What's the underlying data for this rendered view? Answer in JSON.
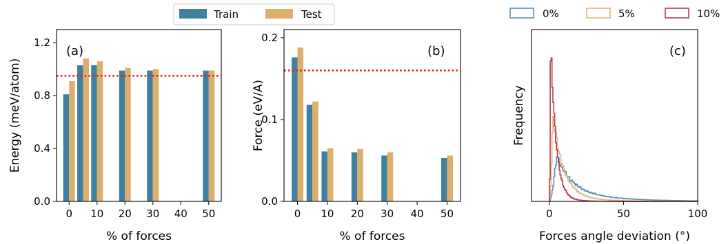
{
  "chart_data": [
    {
      "type": "bar",
      "panel_label": "(a)",
      "xlabel": "% of forces",
      "ylabel": "Energy (meV/atom)",
      "xticks": [
        "0",
        "10",
        "20",
        "30",
        "40",
        "50"
      ],
      "yticks": [
        "0.0",
        "0.4",
        "0.8",
        "1.2"
      ],
      "xlim": [
        -4.5,
        54.5
      ],
      "ylim": [
        0,
        1.3
      ],
      "reference_line": {
        "y": 0.95,
        "style": "dotted",
        "color": "#e8221b"
      },
      "x": [
        0,
        5,
        10,
        20,
        30,
        50
      ],
      "series": [
        {
          "name": "Train",
          "color": "#42809f",
          "values": [
            0.81,
            1.03,
            1.03,
            0.99,
            0.99,
            0.99
          ]
        },
        {
          "name": "Test",
          "color": "#dcb06c",
          "values": [
            0.91,
            1.08,
            1.06,
            1.01,
            1.0,
            0.99
          ]
        }
      ]
    },
    {
      "type": "bar",
      "panel_label": "(b)",
      "xlabel": "% of forces",
      "ylabel": "Force (eV/A)",
      "xticks": [
        "0",
        "10",
        "20",
        "30",
        "40",
        "50"
      ],
      "yticks": [
        "0.0",
        "0.1",
        "0.2"
      ],
      "xlim": [
        -4.5,
        54.5
      ],
      "ylim": [
        0,
        0.21
      ],
      "reference_line": {
        "y": 0.16,
        "style": "dotted",
        "color": "#e8221b"
      },
      "x": [
        0,
        5,
        10,
        20,
        30,
        50
      ],
      "series": [
        {
          "name": "Train",
          "color": "#42809f",
          "values": [
            0.176,
            0.118,
            0.061,
            0.06,
            0.056,
            0.053
          ]
        },
        {
          "name": "Test",
          "color": "#dcb06c",
          "values": [
            0.188,
            0.122,
            0.065,
            0.064,
            0.06,
            0.056
          ]
        }
      ]
    },
    {
      "type": "histogram",
      "panel_label": "(c)",
      "xlabel": "Forces angle deviation (°)",
      "ylabel": "Frequency",
      "xticks": [
        "0",
        "50",
        "100"
      ],
      "xlim": [
        -12,
        100
      ],
      "ylim": [
        0,
        1.05
      ],
      "series": [
        {
          "name": "0%",
          "color": "#5b8fb0",
          "mode": 5,
          "peak": 0.28,
          "decay_fast": 10,
          "tail": 0.07,
          "decay_slow": 30
        },
        {
          "name": "5%",
          "color": "#e0b87a",
          "mode": 2.5,
          "peak": 0.52,
          "decay_fast": 7,
          "tail": 0.035,
          "decay_slow": 22
        },
        {
          "name": "10%",
          "color": "#b83a50",
          "mode": 1,
          "peak": 1.0,
          "decay_fast": 3.5,
          "tail": 0.02,
          "decay_slow": 12
        }
      ]
    }
  ]
}
